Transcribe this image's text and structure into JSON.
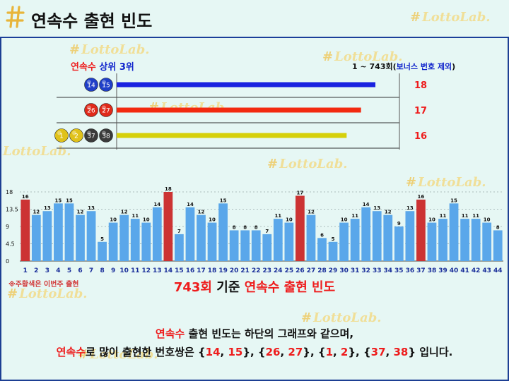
{
  "header": {
    "title": "연속수 출현 빈도"
  },
  "watermark_text": "LottoLab.",
  "top3": {
    "label_red": "연속수",
    "label_blue": "상위 3위",
    "range_prefix": "1 ~ 743회(",
    "range_blue": "보너스 번호 제외",
    "range_suffix": ")",
    "rows": [
      {
        "balls": [
          "14",
          "15"
        ],
        "ball_colors": [
          "#1f3fc8",
          "#1f3fc8"
        ],
        "bar_color": "#1a22e0",
        "value": 18
      },
      {
        "balls": [
          "26",
          "27"
        ],
        "ball_colors": [
          "#e02a1a",
          "#e02a1a"
        ],
        "bar_color": "#f22a10",
        "value": 17
      },
      {
        "balls": [
          "1",
          "2",
          "37",
          "38"
        ],
        "ball_colors": [
          "#e0c21a",
          "#e0c21a",
          "#3a3a3a",
          "#3a3a3a"
        ],
        "bar_color": "#d6d00a",
        "value": 16
      }
    ],
    "max": 18
  },
  "chart_data": {
    "type": "bar",
    "categories": [
      "1",
      "2",
      "3",
      "4",
      "5",
      "6",
      "7",
      "8",
      "9",
      "10",
      "11",
      "12",
      "13",
      "14",
      "15",
      "16",
      "17",
      "18",
      "19",
      "20",
      "21",
      "22",
      "23",
      "24",
      "25",
      "26",
      "27",
      "28",
      "29",
      "30",
      "31",
      "32",
      "33",
      "34",
      "35",
      "36",
      "37",
      "38",
      "39",
      "40",
      "41",
      "42",
      "43",
      "44"
    ],
    "values": [
      16,
      12,
      13,
      15,
      15,
      12,
      13,
      5,
      10,
      12,
      11,
      10,
      14,
      18,
      7,
      14,
      12,
      10,
      15,
      8,
      8,
      8,
      7,
      11,
      10,
      17,
      12,
      6,
      5,
      10,
      11,
      14,
      13,
      12,
      9,
      13,
      16,
      10,
      11,
      15,
      11,
      11,
      10,
      8
    ],
    "highlighted": [
      "1",
      "14",
      "26",
      "37"
    ],
    "colors": {
      "normal": "#5aa7ea",
      "highlight": "#cc3333"
    },
    "yticks": [
      "0",
      "4.5",
      "9",
      "13.5",
      "18"
    ],
    "ylim": [
      0,
      18
    ],
    "title": "743회 기준 연속수 출현 빈도",
    "title_red": "743회",
    "title_black": "기준",
    "title_red2": "연속수 출현 빈도",
    "grid": true
  },
  "legend_note": "※주황색은 이번주 출현",
  "summary": {
    "line1_red": "연속수",
    "line1_rest": " 출현 빈도는 하단의 그래프와 같으며,",
    "line2_red": "연속수",
    "line2_a": "로 많이 출현한 번호쌍은 {",
    "p1a": "14",
    "p1b": "15",
    "p2a": "26",
    "p2b": "27",
    "p3a": "1",
    "p3b": "2",
    "p4a": "37",
    "p4b": "38",
    "line2_end": "} 입니다."
  }
}
